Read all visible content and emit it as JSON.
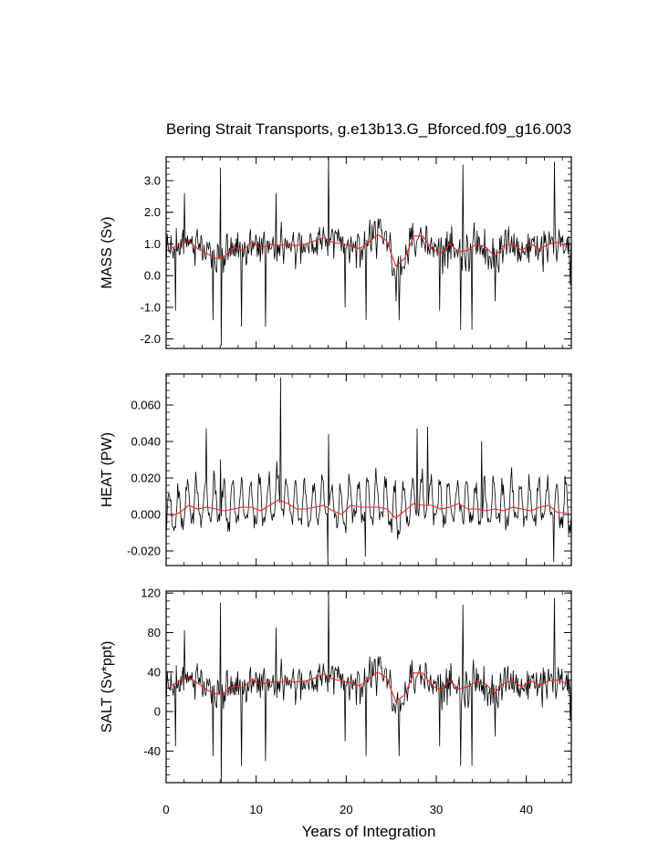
{
  "chart_data": {
    "type": "line",
    "title": "Bering Strait Transports, g.e13b13.G_Bforced.f09_g16.003",
    "xlabel": "Years of Integration",
    "xlim": [
      0,
      45
    ],
    "x_ticks": [
      0,
      10,
      20,
      30,
      40
    ],
    "x_tick_labels": [
      "0",
      "10",
      "20",
      "30",
      "40"
    ],
    "series_colors": {
      "monthly": "#000000",
      "annual": "#e8262a"
    },
    "panels": [
      {
        "id": "mass",
        "ylabel": "MASS (Sv)",
        "ylim": [
          -2.3,
          3.75
        ],
        "y_ticks": [
          -2,
          -1,
          0,
          1,
          2,
          3
        ],
        "y_tick_labels": [
          "-2.0",
          "-1.0",
          "0.0",
          "1.0",
          "2.0",
          "3.0"
        ],
        "annual_x": [
          0.5,
          1.5,
          2.5,
          3.5,
          4.5,
          5.5,
          6.5,
          7.5,
          8.5,
          9.5,
          10.5,
          11.5,
          12.5,
          13.5,
          14.5,
          15.5,
          16.5,
          17.5,
          18.5,
          19.5,
          20.5,
          21.5,
          22.5,
          23.5,
          24.5,
          25.5,
          26.5,
          27.5,
          28.5,
          29.5,
          30.5,
          31.5,
          32.5,
          33.5,
          34.5,
          35.5,
          36.5,
          37.5,
          38.5,
          39.5,
          40.5,
          41.5,
          42.5,
          43.5,
          44.5
        ],
        "annual_values": [
          0.85,
          1.0,
          1.1,
          0.85,
          0.7,
          0.55,
          0.6,
          0.9,
          0.8,
          1.05,
          0.85,
          1.0,
          0.95,
          1.0,
          0.95,
          1.0,
          1.1,
          1.2,
          1.05,
          1.0,
          0.95,
          0.85,
          1.05,
          1.3,
          1.1,
          0.3,
          0.55,
          1.25,
          1.25,
          0.85,
          0.7,
          1.0,
          0.75,
          0.8,
          1.0,
          0.9,
          0.6,
          0.95,
          1.0,
          0.8,
          1.0,
          0.85,
          1.0,
          1.05,
          0.9
        ],
        "mean": 0.93,
        "spread": 0.7,
        "spikes": [
          [
            6.0,
            3.4
          ],
          [
            6.1,
            -2.2
          ],
          [
            2.0,
            2.6
          ],
          [
            1.0,
            -1.1
          ],
          [
            5.2,
            -1.4
          ],
          [
            8.3,
            -1.6
          ],
          [
            11.0,
            -1.6
          ],
          [
            12.2,
            2.6
          ],
          [
            18.0,
            3.8
          ],
          [
            19.8,
            -1.0
          ],
          [
            22.2,
            -1.4
          ],
          [
            25.8,
            -1.4
          ],
          [
            25.5,
            -0.8
          ],
          [
            30.3,
            -1.1
          ],
          [
            32.9,
            3.5
          ],
          [
            32.7,
            -1.7
          ],
          [
            33.9,
            -1.7
          ],
          [
            36.5,
            -0.8
          ],
          [
            43.1,
            3.6
          ],
          [
            44.8,
            -0.3
          ]
        ]
      },
      {
        "id": "heat",
        "ylabel": "HEAT (PW)",
        "ylim": [
          -0.028,
          0.077
        ],
        "y_ticks": [
          -0.02,
          0,
          0.02,
          0.04,
          0.06
        ],
        "y_tick_labels": [
          "-0.020",
          "0.000",
          "0.020",
          "0.040",
          "0.060"
        ],
        "annual_x": [
          0.5,
          1.5,
          2.5,
          3.5,
          4.5,
          5.5,
          6.5,
          7.5,
          8.5,
          9.5,
          10.5,
          11.5,
          12.5,
          13.5,
          14.5,
          15.5,
          16.5,
          17.5,
          18.5,
          19.5,
          20.5,
          21.5,
          22.5,
          23.5,
          24.5,
          25.5,
          26.5,
          27.5,
          28.5,
          29.5,
          30.5,
          31.5,
          32.5,
          33.5,
          34.5,
          35.5,
          36.5,
          37.5,
          38.5,
          39.5,
          40.5,
          41.5,
          42.5,
          43.5,
          44.5
        ],
        "annual_values": [
          -0.001,
          0.001,
          0.005,
          0.003,
          0.004,
          0.003,
          0.002,
          0.003,
          0.004,
          0.004,
          0.002,
          0.005,
          0.008,
          0.006,
          0.003,
          0.003,
          0.004,
          0.005,
          0.002,
          0.0,
          0.005,
          0.004,
          0.004,
          0.004,
          0.003,
          -0.002,
          0.002,
          0.006,
          0.005,
          0.005,
          0.003,
          0.004,
          0.006,
          0.003,
          0.003,
          0.002,
          0.003,
          0.002,
          0.004,
          0.003,
          0.002,
          0.004,
          0.005,
          0.001,
          0.001
        ],
        "mean": 0.003,
        "spread": 0.009,
        "seasonal_amp": 0.016,
        "spikes": [
          [
            12.7,
            0.075
          ],
          [
            4.4,
            0.047
          ],
          [
            27.8,
            0.047
          ],
          [
            29.0,
            0.048
          ],
          [
            6.0,
            0.03
          ],
          [
            18.0,
            0.044
          ],
          [
            17.9,
            -0.027
          ],
          [
            22.1,
            -0.023
          ],
          [
            43.0,
            -0.026
          ],
          [
            35.0,
            0.04
          ]
        ]
      },
      {
        "id": "salt",
        "ylabel": "SALT (Sv*ppt)",
        "ylim": [
          -72,
          122
        ],
        "y_ticks": [
          -40,
          0,
          40,
          80,
          120
        ],
        "y_tick_labels": [
          "-40",
          "0",
          "40",
          "80",
          "120"
        ],
        "annual_x": [
          0.5,
          1.5,
          2.5,
          3.5,
          4.5,
          5.5,
          6.5,
          7.5,
          8.5,
          9.5,
          10.5,
          11.5,
          12.5,
          13.5,
          14.5,
          15.5,
          16.5,
          17.5,
          18.5,
          19.5,
          20.5,
          21.5,
          22.5,
          23.5,
          24.5,
          25.5,
          26.5,
          27.5,
          28.5,
          29.5,
          30.5,
          31.5,
          32.5,
          33.5,
          34.5,
          35.5,
          36.5,
          37.5,
          38.5,
          39.5,
          40.5,
          41.5,
          42.5,
          43.5,
          44.5
        ],
        "annual_values": [
          26,
          31,
          35,
          29,
          22,
          18,
          19,
          26,
          24,
          32,
          27,
          30,
          30,
          31,
          30,
          31,
          34,
          38,
          33,
          31,
          29,
          26,
          33,
          40,
          34,
          10,
          17,
          39,
          39,
          26,
          22,
          31,
          23,
          25,
          31,
          28,
          19,
          29,
          31,
          25,
          31,
          27,
          31,
          32,
          28
        ],
        "mean": 29,
        "spread": 22,
        "spikes": [
          [
            6.0,
            110
          ],
          [
            6.1,
            -72
          ],
          [
            2.0,
            82
          ],
          [
            1.0,
            -35
          ],
          [
            5.2,
            -45
          ],
          [
            8.3,
            -55
          ],
          [
            11.0,
            -50
          ],
          [
            12.2,
            85
          ],
          [
            18.0,
            122
          ],
          [
            19.8,
            -30
          ],
          [
            22.2,
            -45
          ],
          [
            25.8,
            -45
          ],
          [
            30.3,
            -35
          ],
          [
            32.9,
            108
          ],
          [
            32.7,
            -55
          ],
          [
            33.9,
            -55
          ],
          [
            36.5,
            -25
          ],
          [
            43.1,
            115
          ],
          [
            44.8,
            -10
          ]
        ]
      }
    ]
  }
}
